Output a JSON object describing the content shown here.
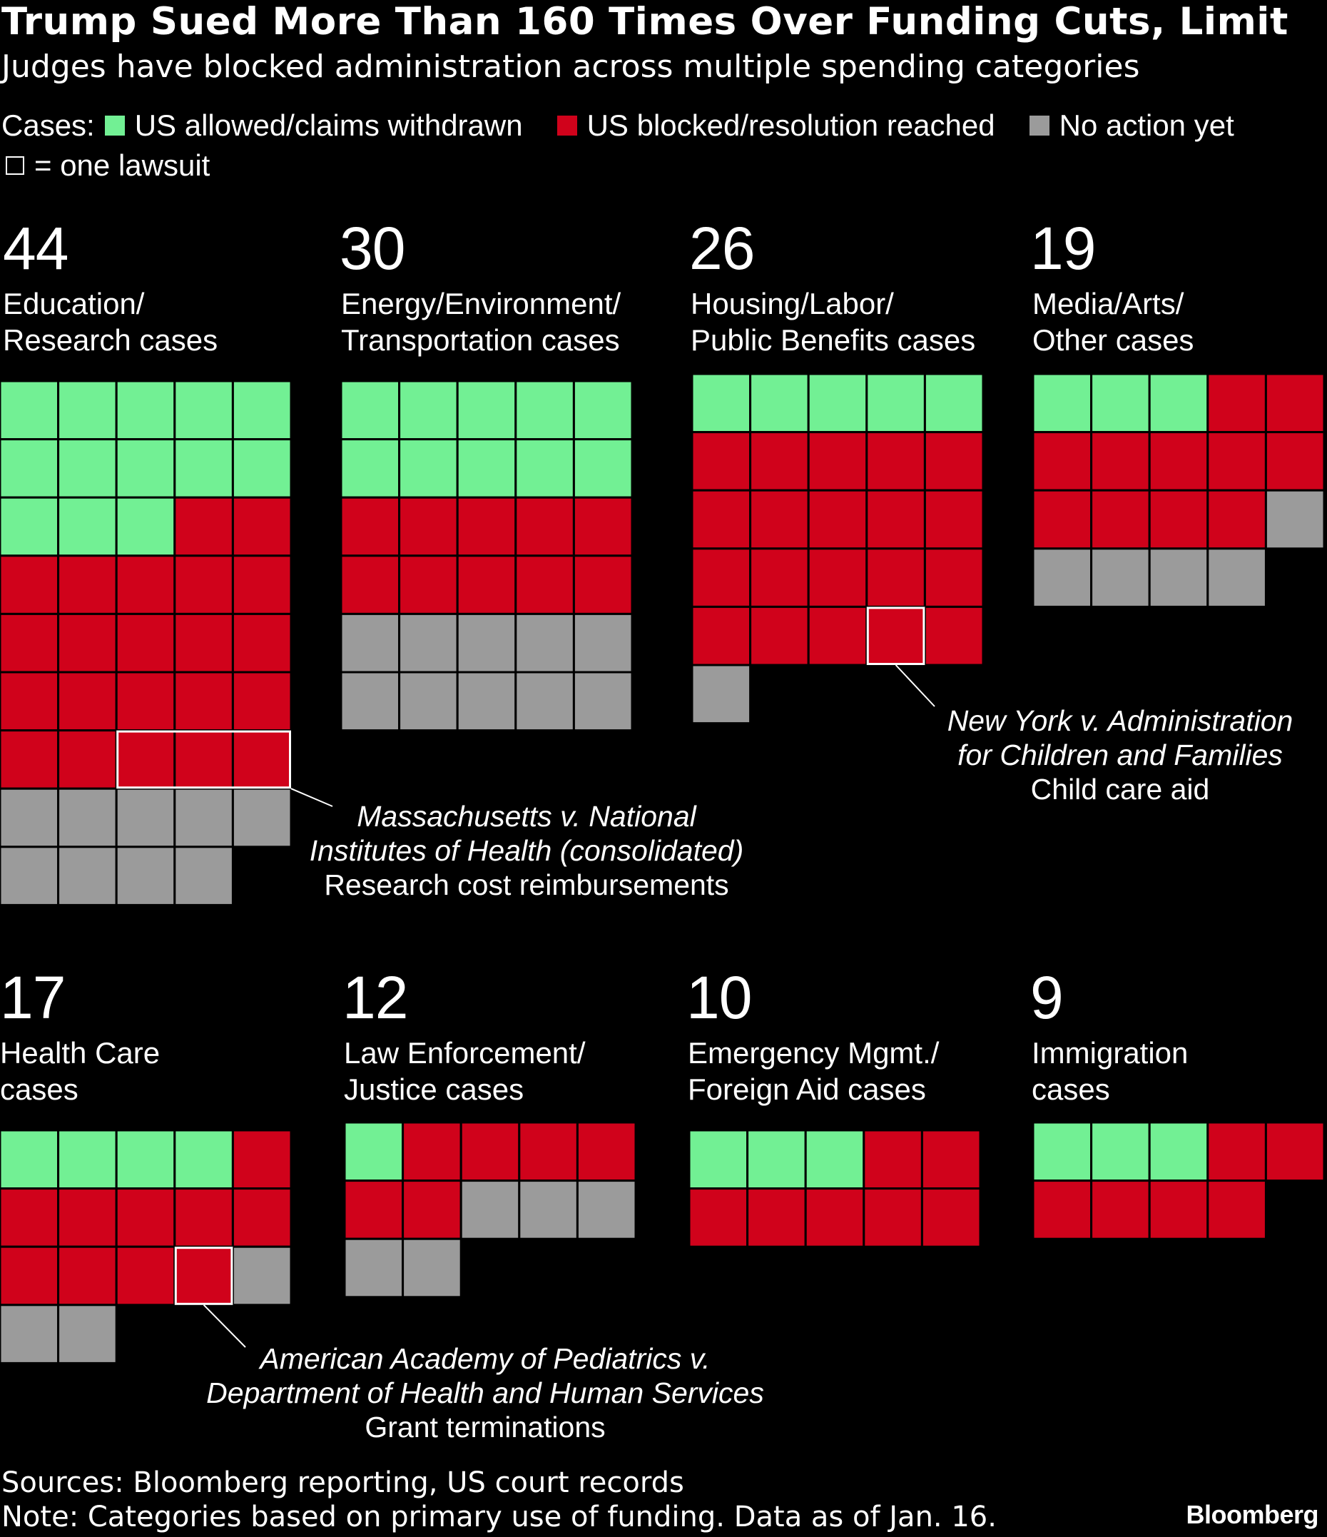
{
  "header": {
    "title": "Trump Sued More Than 160 Times Over Funding Cuts, Limit",
    "subtitle": "Judges have blocked administration across multiple spending categories"
  },
  "legend": {
    "prefix": "Cases:",
    "items": [
      {
        "label": "US allowed/claims withdrawn",
        "color": "#72f094"
      },
      {
        "label": "US blocked/resolution reached",
        "color": "#d0021b"
      },
      {
        "label": "No action yet",
        "color": "#9b9b9b"
      }
    ],
    "unit_note": "= one lawsuit"
  },
  "chart_data": {
    "type": "waffle",
    "unit": "one lawsuit",
    "categories": [
      {
        "total": "44",
        "label_line1": "Education/",
        "label_line2": "Research cases",
        "allowed": 13,
        "blocked": 22,
        "no_action": 9,
        "annotation": {
          "line1": "Massachusetts v. National",
          "line2": "Institutes of Health (consolidated)",
          "line3": "Research cost reimbursements"
        }
      },
      {
        "total": "30",
        "label_line1": "Energy/Environment/",
        "label_line2": "Transportation cases",
        "allowed": 10,
        "blocked": 10,
        "no_action": 10
      },
      {
        "total": "26",
        "label_line1": "Housing/Labor/",
        "label_line2": "Public Benefits cases",
        "allowed": 5,
        "blocked": 20,
        "no_action": 1,
        "annotation": {
          "line1": "New York v. Administration",
          "line2": "for Children and Families",
          "line3": "Child care aid"
        }
      },
      {
        "total": "19",
        "label_line1": "Media/Arts/",
        "label_line2": "Other cases",
        "allowed": 3,
        "blocked": 11,
        "no_action": 5
      },
      {
        "total": "17",
        "label_line1": "Health Care",
        "label_line2": "cases",
        "allowed": 4,
        "blocked": 10,
        "no_action": 3,
        "annotation": {
          "line1": "American Academy of Pediatrics v.",
          "line2": "Department of Health and Human Services",
          "line3": "Grant terminations"
        }
      },
      {
        "total": "12",
        "label_line1": "Law Enforcement/",
        "label_line2": "Justice cases",
        "allowed": 1,
        "blocked": 6,
        "no_action": 5
      },
      {
        "total": "10",
        "label_line1": "Emergency Mgmt./",
        "label_line2": "Foreign Aid cases",
        "allowed": 3,
        "blocked": 7,
        "no_action": 0
      },
      {
        "total": "9",
        "label_line1": "Immigration",
        "label_line2": "cases",
        "allowed": 3,
        "blocked": 6,
        "no_action": 0
      }
    ]
  },
  "footer": {
    "sources": "Sources: Bloomberg reporting, US court records",
    "note": "Note: Categories based on primary use of funding. Data as of Jan. 16.",
    "brand": "Bloomberg"
  }
}
